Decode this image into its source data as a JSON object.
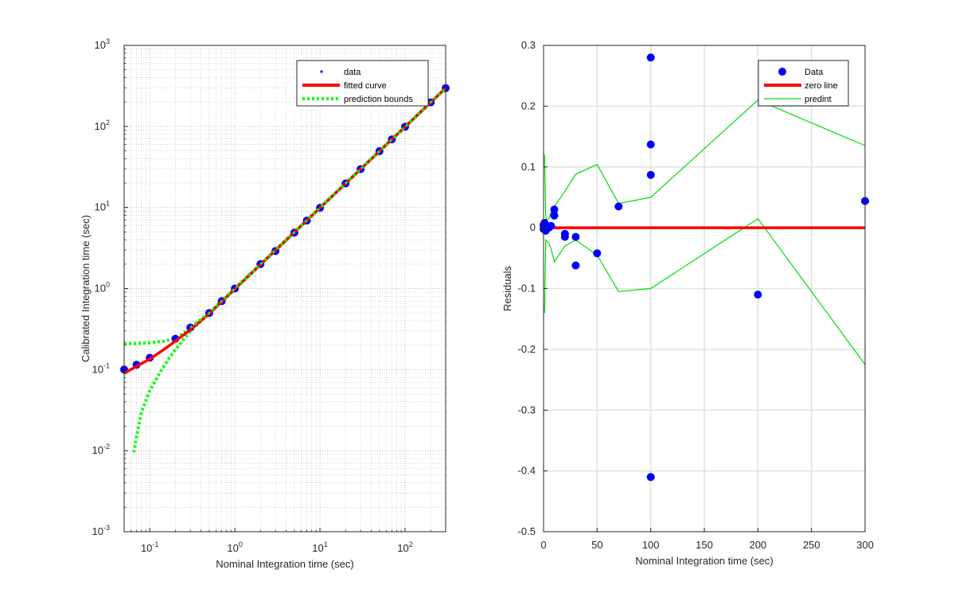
{
  "colors": {
    "data": "#0000ff",
    "fit": "#ff0000",
    "bounds": "#00ff00",
    "predint": "#00dd00",
    "axis": "#262626",
    "grid": "#e0e0e0",
    "minorgrid": "#ededed"
  },
  "chart_data": [
    {
      "type": "scatter",
      "xscale": "log",
      "yscale": "log",
      "xlim": [
        0.05,
        300
      ],
      "ylim": [
        0.001,
        1000
      ],
      "xlabel": "Nominal Integration time (sec)",
      "ylabel": "Calibrated Integration time (sec)",
      "grid": true,
      "minor_grid": true,
      "legend": "top-right",
      "x_ticks": [
        {
          "value": 0.1,
          "base": "10",
          "exp": "-1"
        },
        {
          "value": 1,
          "base": "10",
          "exp": "0"
        },
        {
          "value": 10,
          "base": "10",
          "exp": "1"
        },
        {
          "value": 100,
          "base": "10",
          "exp": "2"
        }
      ],
      "y_ticks": [
        {
          "value": 0.001,
          "base": "10",
          "exp": "-3"
        },
        {
          "value": 0.01,
          "base": "10",
          "exp": "-2"
        },
        {
          "value": 0.1,
          "base": "10",
          "exp": "-1"
        },
        {
          "value": 1,
          "base": "10",
          "exp": "0"
        },
        {
          "value": 10,
          "base": "10",
          "exp": "1"
        },
        {
          "value": 100,
          "base": "10",
          "exp": "2"
        },
        {
          "value": 1000,
          "base": "10",
          "exp": "3"
        }
      ],
      "series": [
        {
          "name": "data",
          "kind": "points",
          "x": [
            0.05,
            0.07,
            0.1,
            0.2,
            0.3,
            0.5,
            0.7,
            1,
            2,
            3,
            5,
            7,
            10,
            20,
            30,
            50,
            70,
            100,
            200,
            300
          ],
          "y": [
            0.1,
            0.115,
            0.14,
            0.24,
            0.33,
            0.5,
            0.7,
            1.0,
            2.0,
            2.9,
            4.9,
            6.9,
            9.9,
            19.8,
            29.7,
            49.5,
            69.3,
            99.0,
            198,
            297
          ]
        },
        {
          "name": "fitted curve",
          "kind": "line",
          "x": [
            0.05,
            0.07,
            0.1,
            0.15,
            0.2,
            0.3,
            0.5,
            0.7,
            1,
            2,
            5,
            10,
            30,
            100,
            300
          ],
          "y": [
            0.09,
            0.11,
            0.135,
            0.18,
            0.225,
            0.31,
            0.49,
            0.69,
            0.99,
            1.98,
            4.95,
            9.9,
            29.7,
            99,
            297
          ]
        },
        {
          "name": "prediction bounds",
          "kind": "dotted",
          "x": [
            0.05,
            0.07,
            0.1,
            0.15,
            0.2,
            0.25,
            0.3,
            0.5,
            1,
            10,
            100,
            300
          ],
          "y": [
            0.21,
            0.21,
            0.215,
            0.225,
            0.245,
            0.28,
            0.33,
            0.5,
            1.0,
            9.9,
            99,
            297
          ]
        },
        {
          "name": "",
          "kind": "dotted",
          "x": [
            0.065,
            0.07,
            0.08,
            0.1,
            0.13,
            0.17,
            0.22,
            0.3,
            0.5,
            1,
            10,
            100,
            300
          ],
          "y": [
            0.0095,
            0.015,
            0.03,
            0.055,
            0.09,
            0.14,
            0.2,
            0.3,
            0.49,
            0.98,
            9.9,
            99,
            297
          ]
        }
      ]
    },
    {
      "type": "scatter",
      "xlim": [
        0,
        300
      ],
      "ylim": [
        -0.5,
        0.3
      ],
      "xlabel": "Nominal Integration time (sec)",
      "ylabel": "Residuals",
      "grid": true,
      "legend": "top-right",
      "x_ticks": [
        "0",
        "50",
        "100",
        "150",
        "200",
        "250",
        "300"
      ],
      "y_ticks": [
        "-0.5",
        "-0.4",
        "-0.3",
        "-0.2",
        "-0.1",
        "0",
        "0.1",
        "0.2",
        "0.3"
      ],
      "series": [
        {
          "name": "Data",
          "kind": "points",
          "x": [
            0.05,
            0.07,
            0.1,
            0.2,
            0.3,
            0.5,
            0.7,
            1,
            2,
            3,
            5,
            7,
            10,
            10,
            20,
            20,
            30,
            30,
            50,
            70,
            100,
            100,
            100,
            100,
            200,
            300
          ],
          "y": [
            0.005,
            0.003,
            -0.002,
            0.0,
            0.002,
            0.0,
            0.005,
            0.008,
            -0.005,
            0.0,
            0.0,
            0.003,
            0.03,
            0.02,
            -0.01,
            -0.015,
            -0.015,
            -0.062,
            -0.042,
            0.035,
            0.28,
            0.137,
            0.087,
            -0.41,
            -0.11,
            0.044
          ]
        },
        {
          "name": "zero line",
          "kind": "thick-line",
          "x": [
            0,
            300
          ],
          "y": [
            0,
            0
          ]
        },
        {
          "name": "predint",
          "kind": "thin-line",
          "x": [
            1,
            2,
            3,
            5,
            7,
            10,
            20,
            30,
            50,
            70,
            100,
            200,
            300
          ],
          "y": [
            0.12,
            0.02,
            0.012,
            0.015,
            0.025,
            0.035,
            0.06,
            0.088,
            0.104,
            0.04,
            0.05,
            0.21,
            0.135
          ]
        },
        {
          "name": "",
          "kind": "thin-line",
          "x": [
            1,
            2,
            3,
            5,
            7,
            10,
            20,
            30,
            50,
            70,
            100,
            200,
            300
          ],
          "y": [
            -0.14,
            -0.02,
            -0.022,
            -0.025,
            -0.035,
            -0.056,
            -0.03,
            -0.02,
            -0.045,
            -0.105,
            -0.1,
            0.015,
            -0.225
          ]
        }
      ]
    }
  ]
}
